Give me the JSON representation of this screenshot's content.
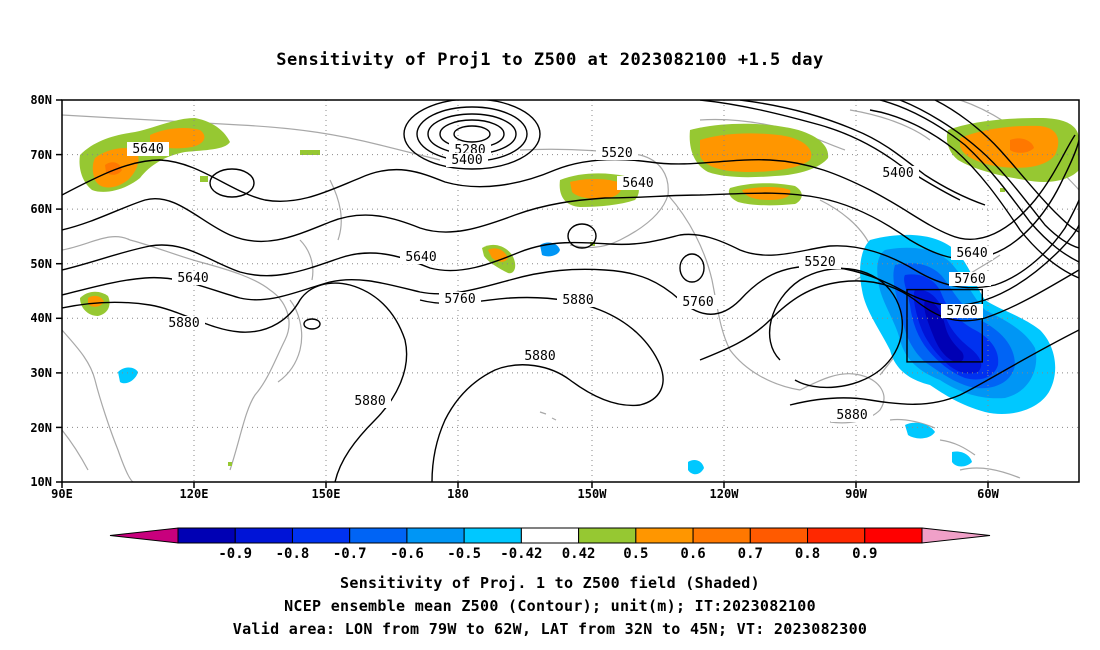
{
  "title": "Sensitivity of Proj1 to Z500 at 2023082100 +1.5 day",
  "map": {
    "lat_labels": [
      "80N",
      "70N",
      "60N",
      "50N",
      "40N",
      "30N",
      "20N",
      "10N"
    ],
    "lon_labels": [
      "90E",
      "120E",
      "150E",
      "180",
      "150W",
      "120W",
      "90W",
      "60W"
    ],
    "contour_labels": [
      {
        "text": "5640"
      },
      {
        "text": "5280"
      },
      {
        "text": "5400"
      },
      {
        "text": "5520"
      },
      {
        "text": "5640"
      },
      {
        "text": "5400"
      },
      {
        "text": "5640"
      },
      {
        "text": "5640"
      },
      {
        "text": "5760"
      },
      {
        "text": "5880"
      },
      {
        "text": "5880"
      },
      {
        "text": "5760"
      },
      {
        "text": "5880"
      },
      {
        "text": "5880"
      },
      {
        "text": "5520"
      },
      {
        "text": "5640"
      },
      {
        "text": "5760"
      },
      {
        "text": "5760"
      },
      {
        "text": "5880"
      }
    ],
    "valid_box": {
      "lon_from": "79W",
      "lon_to": "62W",
      "lat_from": "32N",
      "lat_to": "45N"
    }
  },
  "colorbar": {
    "labels": [
      "-0.9",
      "-0.8",
      "-0.7",
      "-0.6",
      "-0.5",
      "-0.42",
      "0.42",
      "0.5",
      "0.6",
      "0.7",
      "0.8",
      "0.9"
    ],
    "colors": [
      "#c8007d",
      "#0000b4",
      "#0014d7",
      "#0032f0",
      "#0064f5",
      "#0096f5",
      "#00c8ff",
      "#ffffff",
      "#96c832",
      "#ff9600",
      "#ff7800",
      "#ff5a00",
      "#ff2800",
      "#ff0000",
      "#f0a0c8"
    ]
  },
  "captions": [
    "Sensitivity of Proj. 1 to Z500 field (Shaded)",
    "NCEP ensemble mean Z500 (Contour); unit(m); IT:2023082100",
    "Valid area: LON from 79W to 62W, LAT from 32N to 45N; VT: 2023082300"
  ]
}
